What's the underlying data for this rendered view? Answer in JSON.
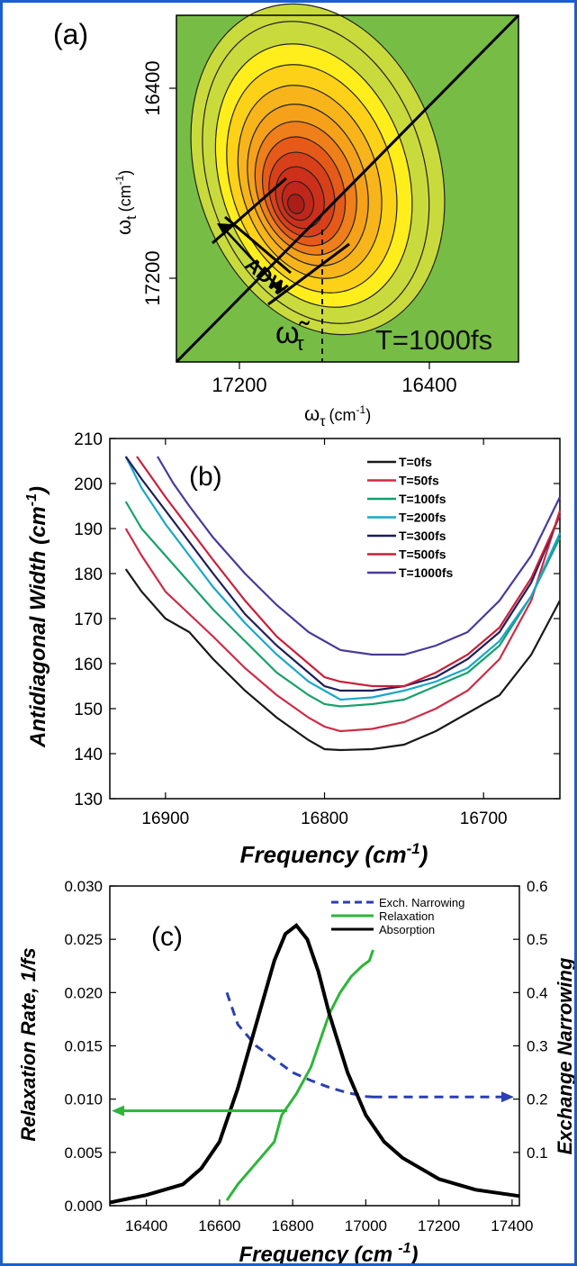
{
  "chart_data": [
    {
      "panel": "(a)",
      "type": "heatmap",
      "xlabel_base": "ω",
      "xlabel_sub": "τ",
      "xlabel_unit": "(cm",
      "xlabel_exp": "-1",
      "xlabel_close": ")",
      "ylabel_base": "ω",
      "ylabel_sub": "t",
      "ylabel_unit": "(cm",
      "ylabel_exp": "-1",
      "ylabel_close": ")",
      "xticks": [
        "17200",
        "16400"
      ],
      "yticks": [
        "16400",
        "17200"
      ],
      "annotations": {
        "adw": "ADW",
        "omega_tilde": "ω̃",
        "omega_tilde_sub": "τ",
        "time": "T=1000fs"
      },
      "colors": {
        "background": "#77bd45",
        "outer": "#c9db3c",
        "mid": "#ffee1c",
        "orange": "#f5a21a",
        "core": "#c0261a"
      }
    },
    {
      "panel": "(b)",
      "type": "line",
      "xlabel": "Frequency (cm",
      "xlabel_exp": "-1",
      "xlabel_close": ")",
      "ylabel": "Antidiagonal Width (cm",
      "ylabel_exp": "-1",
      "ylabel_close": ")",
      "xlim": [
        16935,
        16652
      ],
      "ylim": [
        130,
        210
      ],
      "xticks": [
        16900,
        16800,
        16700
      ],
      "yticks": [
        130,
        140,
        150,
        160,
        170,
        180,
        190,
        200,
        210
      ],
      "legend_position": "top-right",
      "series": [
        {
          "name": "T=0fs",
          "color": "#1a1a1a",
          "x": [
            16925,
            16915,
            16900,
            16885,
            16870,
            16850,
            16830,
            16810,
            16800,
            16790,
            16770,
            16750,
            16730,
            16710,
            16690,
            16670,
            16652
          ],
          "y": [
            181,
            176,
            170,
            167,
            161,
            154,
            148,
            143,
            141,
            140.8,
            141,
            142,
            145,
            149,
            153,
            162,
            174
          ]
        },
        {
          "name": "T=50fs",
          "color": "#cc2b45",
          "x": [
            16925,
            16915,
            16900,
            16885,
            16870,
            16850,
            16830,
            16810,
            16800,
            16790,
            16770,
            16750,
            16730,
            16710,
            16690,
            16670,
            16652
          ],
          "y": [
            190,
            184,
            176,
            171,
            166,
            159,
            153,
            148,
            146,
            145,
            145.5,
            147,
            150,
            154,
            161,
            174,
            194
          ]
        },
        {
          "name": "T=100fs",
          "color": "#17a06a",
          "x": [
            16925,
            16915,
            16900,
            16885,
            16870,
            16850,
            16830,
            16810,
            16800,
            16790,
            16770,
            16750,
            16730,
            16710,
            16690,
            16670,
            16652
          ],
          "y": [
            196,
            190,
            184,
            178,
            172,
            165,
            158,
            153,
            151,
            150.5,
            151,
            152,
            155,
            158,
            164,
            175,
            188
          ]
        },
        {
          "name": "T=200fs",
          "color": "#1aa7c9",
          "x": [
            16925,
            16915,
            16900,
            16885,
            16870,
            16850,
            16830,
            16810,
            16800,
            16790,
            16770,
            16750,
            16730,
            16710,
            16690,
            16670,
            16652
          ],
          "y": [
            206,
            199,
            191,
            184,
            177,
            169,
            162,
            156,
            154,
            152,
            152.5,
            154,
            156,
            159,
            165,
            175,
            189
          ]
        },
        {
          "name": "T=300fs",
          "color": "#1e1e5a",
          "x": [
            16925,
            16915,
            16900,
            16885,
            16870,
            16850,
            16830,
            16810,
            16800,
            16790,
            16770,
            16750,
            16730,
            16710,
            16690,
            16670,
            16652
          ],
          "y": [
            206,
            201,
            194,
            187,
            180,
            171,
            164,
            158,
            155,
            154,
            154,
            155,
            157,
            161,
            167,
            178,
            193
          ]
        },
        {
          "name": "T=500fs",
          "color": "#c8203a",
          "x": [
            16918,
            16910,
            16900,
            16885,
            16870,
            16850,
            16830,
            16810,
            16800,
            16790,
            16770,
            16750,
            16730,
            16710,
            16690,
            16670,
            16652
          ],
          "y": [
            206,
            202,
            197,
            190,
            183,
            174,
            166,
            160,
            157,
            156,
            155,
            155,
            158,
            162,
            168,
            179,
            193
          ]
        },
        {
          "name": "T=1000fs",
          "color": "#4a3a9a",
          "x": [
            16905,
            16895,
            16885,
            16870,
            16850,
            16830,
            16810,
            16800,
            16790,
            16770,
            16750,
            16730,
            16710,
            16690,
            16670,
            16652
          ],
          "y": [
            206,
            200,
            195,
            188,
            180,
            173,
            167,
            165,
            163,
            162,
            162,
            164,
            167,
            174,
            184,
            197
          ]
        }
      ]
    },
    {
      "panel": "(c)",
      "type": "line",
      "xlabel": "Frequency (cm",
      "xlabel_exp": "-1",
      "xlabel_close": ")",
      "ylabel_left": "Relaxation Rate, 1/fs",
      "ylabel_right": "Exchange Narrowing",
      "xlim": [
        16300,
        17420
      ],
      "ylim_left": [
        0,
        0.03
      ],
      "ylim_right": [
        0,
        0.6
      ],
      "xticks": [
        16400,
        16600,
        16800,
        17000,
        17200,
        17400
      ],
      "yticks_left": [
        "0.000",
        "0.005",
        "0.010",
        "0.015",
        "0.020",
        "0.025",
        "0.030"
      ],
      "yticks_right": [
        "0.1",
        "0.2",
        "0.3",
        "0.4",
        "0.5",
        "0.6"
      ],
      "legend_position": "top-right",
      "series": [
        {
          "name": "Exch. Narrowing",
          "axis": "right",
          "color": "#2b3fb0",
          "style": "dashed",
          "x": [
            16620,
            16650,
            16700,
            16750,
            16800,
            16850,
            16900,
            16950,
            17000,
            17020
          ],
          "y": [
            0.4,
            0.34,
            0.3,
            0.275,
            0.25,
            0.235,
            0.222,
            0.212,
            0.205,
            0.204
          ]
        },
        {
          "name": "Relaxation",
          "axis": "left",
          "color": "#2db53a",
          "style": "solid",
          "x": [
            16620,
            16650,
            16700,
            16750,
            16770,
            16790,
            16810,
            16850,
            16880,
            16900,
            16930,
            16960,
            16990,
            17010,
            17020
          ],
          "y": [
            0.0005,
            0.002,
            0.004,
            0.006,
            0.0085,
            0.0095,
            0.0105,
            0.013,
            0.016,
            0.018,
            0.02,
            0.0215,
            0.0225,
            0.023,
            0.024
          ]
        },
        {
          "name": "Absorption",
          "axis": "left",
          "color": "#000000",
          "style": "solid",
          "x": [
            16300,
            16400,
            16500,
            16550,
            16600,
            16650,
            16700,
            16750,
            16780,
            16810,
            16840,
            16870,
            16900,
            16950,
            17000,
            17050,
            17100,
            17200,
            17300,
            17420
          ],
          "y": [
            0.0003,
            0.001,
            0.002,
            0.0035,
            0.006,
            0.011,
            0.017,
            0.023,
            0.0255,
            0.0263,
            0.025,
            0.022,
            0.018,
            0.0125,
            0.0085,
            0.006,
            0.0045,
            0.0025,
            0.0015,
            0.0009
          ]
        }
      ],
      "arrows": {
        "left_color": "#2db53a",
        "right_color": "#2b3fb0"
      }
    }
  ],
  "panel_b_label": "(b)",
  "panel_c_label": "(c)"
}
